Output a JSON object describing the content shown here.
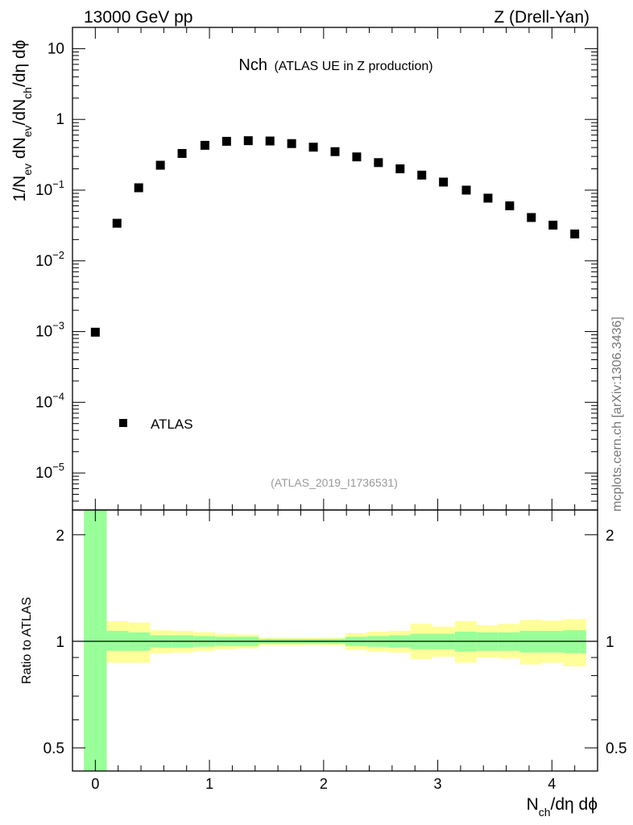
{
  "header": {
    "energy_label": "13000 GeV pp",
    "process_label": "Z (Drell-Yan)"
  },
  "side_note": "mcplots.cern.ch [arXiv:1306.3436]",
  "chart_data": [
    {
      "type": "scatter",
      "title_main": "Nch",
      "title_sub": "(ATLAS UE in Z production)",
      "analysis_id": "(ATLAS_2019_I1736531)",
      "ylabel": "1/N_ev dN_ev/dN_ch/dη dϕ",
      "yscale": "log",
      "ylim": [
        3e-06,
        20
      ],
      "xlim": [
        -0.2,
        4.4
      ],
      "legend": {
        "position": "lower-left",
        "marker": "square",
        "color": "#000000"
      },
      "series": [
        {
          "name": "ATLAS",
          "x": [
            0.0,
            0.19,
            0.38,
            0.57,
            0.76,
            0.96,
            1.15,
            1.34,
            1.53,
            1.72,
            1.91,
            2.1,
            2.29,
            2.48,
            2.67,
            2.86,
            3.05,
            3.25,
            3.44,
            3.63,
            3.82,
            4.01,
            4.2
          ],
          "y": [
            0.00098,
            0.034,
            0.108,
            0.225,
            0.33,
            0.43,
            0.49,
            0.5,
            0.495,
            0.455,
            0.405,
            0.35,
            0.295,
            0.245,
            0.2,
            0.163,
            0.13,
            0.1,
            0.077,
            0.06,
            0.041,
            0.032,
            0.024
          ]
        }
      ],
      "y_ticks": [
        {
          "value": 1e-05,
          "base": "10",
          "exp": "−5"
        },
        {
          "value": 0.0001,
          "base": "10",
          "exp": "−4"
        },
        {
          "value": 0.001,
          "base": "10",
          "exp": "−3"
        },
        {
          "value": 0.01,
          "base": "10",
          "exp": "−2"
        },
        {
          "value": 0.1,
          "base": "10",
          "exp": "−1"
        },
        {
          "value": 1,
          "base": "1",
          "exp": ""
        },
        {
          "value": 10,
          "base": "10",
          "exp": ""
        }
      ]
    },
    {
      "type": "area",
      "ylabel": "Ratio to ATLAS",
      "xlabel": "N_ch/dη dϕ",
      "yscale": "log",
      "ylim": [
        0.43,
        2.35
      ],
      "xlim": [
        -0.2,
        4.4
      ],
      "reference_line": 1,
      "x_ticks": [
        "0",
        "1",
        "2",
        "3",
        "4"
      ],
      "y_ticks": [
        "0.5",
        "1",
        "2"
      ],
      "colors": {
        "inner": "#99ff99",
        "outer": "#ffff99"
      },
      "bins": [
        {
          "x0": -0.1,
          "x1": 0.1,
          "inner": [
            0.43,
            2.35
          ],
          "outer": [
            0.43,
            2.35
          ]
        },
        {
          "x0": 0.1,
          "x1": 0.29,
          "inner": [
            0.94,
            1.07
          ],
          "outer": [
            0.87,
            1.14
          ]
        },
        {
          "x0": 0.29,
          "x1": 0.48,
          "inner": [
            0.94,
            1.06
          ],
          "outer": [
            0.87,
            1.13
          ]
        },
        {
          "x0": 0.48,
          "x1": 0.67,
          "inner": [
            0.96,
            1.04
          ],
          "outer": [
            0.925,
            1.075
          ]
        },
        {
          "x0": 0.67,
          "x1": 0.86,
          "inner": [
            0.96,
            1.04
          ],
          "outer": [
            0.93,
            1.07
          ]
        },
        {
          "x0": 0.86,
          "x1": 1.05,
          "inner": [
            0.965,
            1.035
          ],
          "outer": [
            0.94,
            1.06
          ]
        },
        {
          "x0": 1.05,
          "x1": 1.24,
          "inner": [
            0.97,
            1.03
          ],
          "outer": [
            0.95,
            1.05
          ]
        },
        {
          "x0": 1.24,
          "x1": 1.43,
          "inner": [
            0.97,
            1.03
          ],
          "outer": [
            0.955,
            1.045
          ]
        },
        {
          "x0": 1.43,
          "x1": 1.62,
          "inner": [
            0.985,
            1.015
          ],
          "outer": [
            0.975,
            1.025
          ]
        },
        {
          "x0": 1.62,
          "x1": 1.81,
          "inner": [
            0.985,
            1.015
          ],
          "outer": [
            0.975,
            1.025
          ]
        },
        {
          "x0": 1.81,
          "x1": 2.0,
          "inner": [
            0.985,
            1.015
          ],
          "outer": [
            0.977,
            1.023
          ]
        },
        {
          "x0": 2.0,
          "x1": 2.19,
          "inner": [
            0.985,
            1.015
          ],
          "outer": [
            0.975,
            1.025
          ]
        },
        {
          "x0": 2.19,
          "x1": 2.38,
          "inner": [
            0.97,
            1.03
          ],
          "outer": [
            0.945,
            1.055
          ]
        },
        {
          "x0": 2.38,
          "x1": 2.57,
          "inner": [
            0.965,
            1.035
          ],
          "outer": [
            0.935,
            1.065
          ]
        },
        {
          "x0": 2.57,
          "x1": 2.76,
          "inner": [
            0.96,
            1.04
          ],
          "outer": [
            0.93,
            1.07
          ]
        },
        {
          "x0": 2.76,
          "x1": 2.95,
          "inner": [
            0.95,
            1.05
          ],
          "outer": [
            0.89,
            1.12
          ]
        },
        {
          "x0": 2.95,
          "x1": 3.15,
          "inner": [
            0.95,
            1.05
          ],
          "outer": [
            0.905,
            1.1
          ]
        },
        {
          "x0": 3.15,
          "x1": 3.34,
          "inner": [
            0.935,
            1.065
          ],
          "outer": [
            0.87,
            1.14
          ]
        },
        {
          "x0": 3.34,
          "x1": 3.53,
          "inner": [
            0.94,
            1.06
          ],
          "outer": [
            0.9,
            1.11
          ]
        },
        {
          "x0": 3.53,
          "x1": 3.72,
          "inner": [
            0.94,
            1.06
          ],
          "outer": [
            0.895,
            1.12
          ]
        },
        {
          "x0": 3.72,
          "x1": 3.91,
          "inner": [
            0.93,
            1.07
          ],
          "outer": [
            0.86,
            1.15
          ]
        },
        {
          "x0": 3.91,
          "x1": 4.1,
          "inner": [
            0.93,
            1.07
          ],
          "outer": [
            0.87,
            1.145
          ]
        },
        {
          "x0": 4.1,
          "x1": 4.3,
          "inner": [
            0.925,
            1.075
          ],
          "outer": [
            0.85,
            1.155
          ]
        }
      ]
    }
  ]
}
